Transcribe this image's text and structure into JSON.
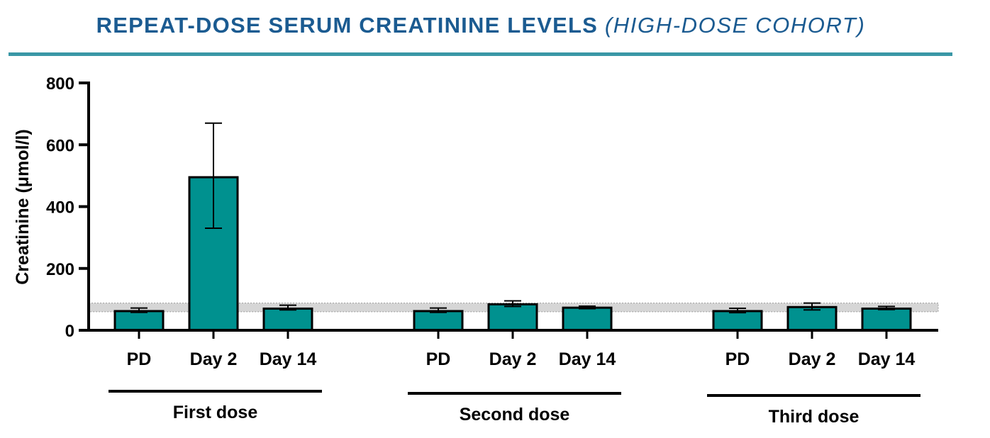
{
  "header": {
    "title": "REPEAT-DOSE SERUM CREATININE LEVELS",
    "subtitle": "(HIGH-DOSE COHORT)"
  },
  "colors": {
    "title": "#1b5b91",
    "rule": "#3a97a6",
    "bar": "#00918f",
    "reference_band": "#d6d6d6"
  },
  "chart_data": {
    "type": "bar",
    "ylabel": "Creatinine (μmol/l)",
    "ylim": [
      0,
      800
    ],
    "yticks": [
      0,
      200,
      400,
      600,
      800
    ],
    "reference_range": [
      60,
      88
    ],
    "groups": [
      {
        "label": "First dose",
        "categories": [
          "PD",
          "Day 2",
          "Day 14"
        ],
        "values": [
          62,
          495,
          70
        ],
        "error_upper": [
          72,
          670,
          81
        ],
        "error_lower": [
          58,
          330,
          66
        ]
      },
      {
        "label": "Second dose",
        "categories": [
          "PD",
          "Day 2",
          "Day 14"
        ],
        "values": [
          62,
          84,
          73
        ],
        "error_upper": [
          72,
          95,
          78
        ],
        "error_lower": [
          58,
          77,
          70
        ]
      },
      {
        "label": "Third dose",
        "categories": [
          "PD",
          "Day 2",
          "Day 14"
        ],
        "values": [
          62,
          75,
          70
        ],
        "error_upper": [
          71,
          88,
          77
        ],
        "error_lower": [
          57,
          66,
          67
        ]
      }
    ]
  }
}
